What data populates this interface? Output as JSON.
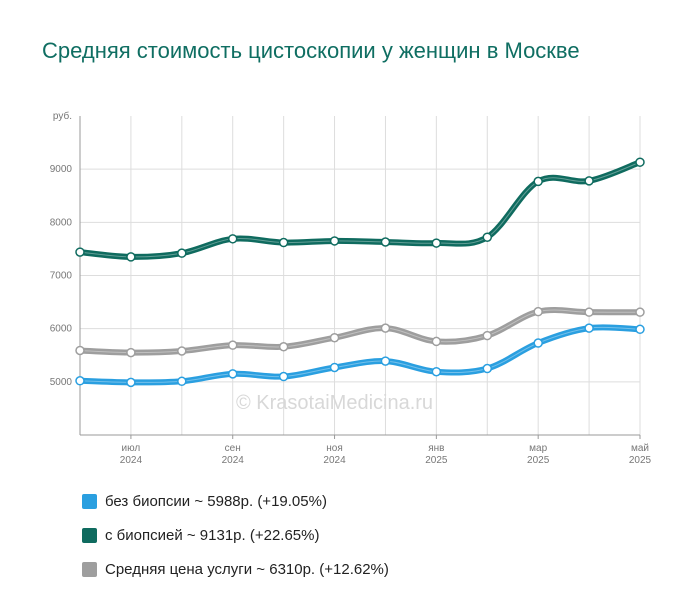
{
  "title": "Средняя стоимость цистоскопии у женщин в Москве",
  "watermark": "© KrasotaiMedicina.ru",
  "chart_data": {
    "type": "line",
    "y_unit_label": "руб.",
    "ylim": [
      4000,
      10000
    ],
    "y_ticks": [
      5000,
      6000,
      7000,
      8000,
      9000
    ],
    "x_tick_labels": [
      {
        "index": 1,
        "month": "июл",
        "year": "2024"
      },
      {
        "index": 3,
        "month": "сен",
        "year": "2024"
      },
      {
        "index": 5,
        "month": "ноя",
        "year": "2024"
      },
      {
        "index": 7,
        "month": "янв",
        "year": "2025"
      },
      {
        "index": 9,
        "month": "мар",
        "year": "2025"
      },
      {
        "index": 11,
        "month": "май",
        "year": "2025"
      }
    ],
    "grid": true,
    "legend_position": "bottom",
    "series": [
      {
        "name": "без биопсии",
        "color": "#2a9fe0",
        "values": [
          5020,
          4990,
          5010,
          5150,
          5100,
          5270,
          5390,
          5190,
          5250,
          5730,
          6010,
          5988
        ]
      },
      {
        "name": "с биопсией",
        "color": "#0f6b5f",
        "values": [
          7440,
          7350,
          7420,
          7690,
          7620,
          7650,
          7630,
          7610,
          7720,
          8770,
          8780,
          9131
        ]
      },
      {
        "name": "Средняя цена услуги",
        "color": "#9e9e9e",
        "values": [
          5590,
          5550,
          5580,
          5690,
          5660,
          5830,
          6010,
          5760,
          5870,
          6320,
          6310,
          6310
        ]
      }
    ]
  },
  "legend": [
    {
      "text": "без биопсии ~ 5988р. (+19.05%)",
      "color": "#2a9fe0"
    },
    {
      "text": "с биопсией ~ 9131р. (+22.65%)",
      "color": "#0f6b5f"
    },
    {
      "text": "Средняя цена услуги ~ 6310р. (+12.62%)",
      "color": "#9e9e9e"
    }
  ]
}
